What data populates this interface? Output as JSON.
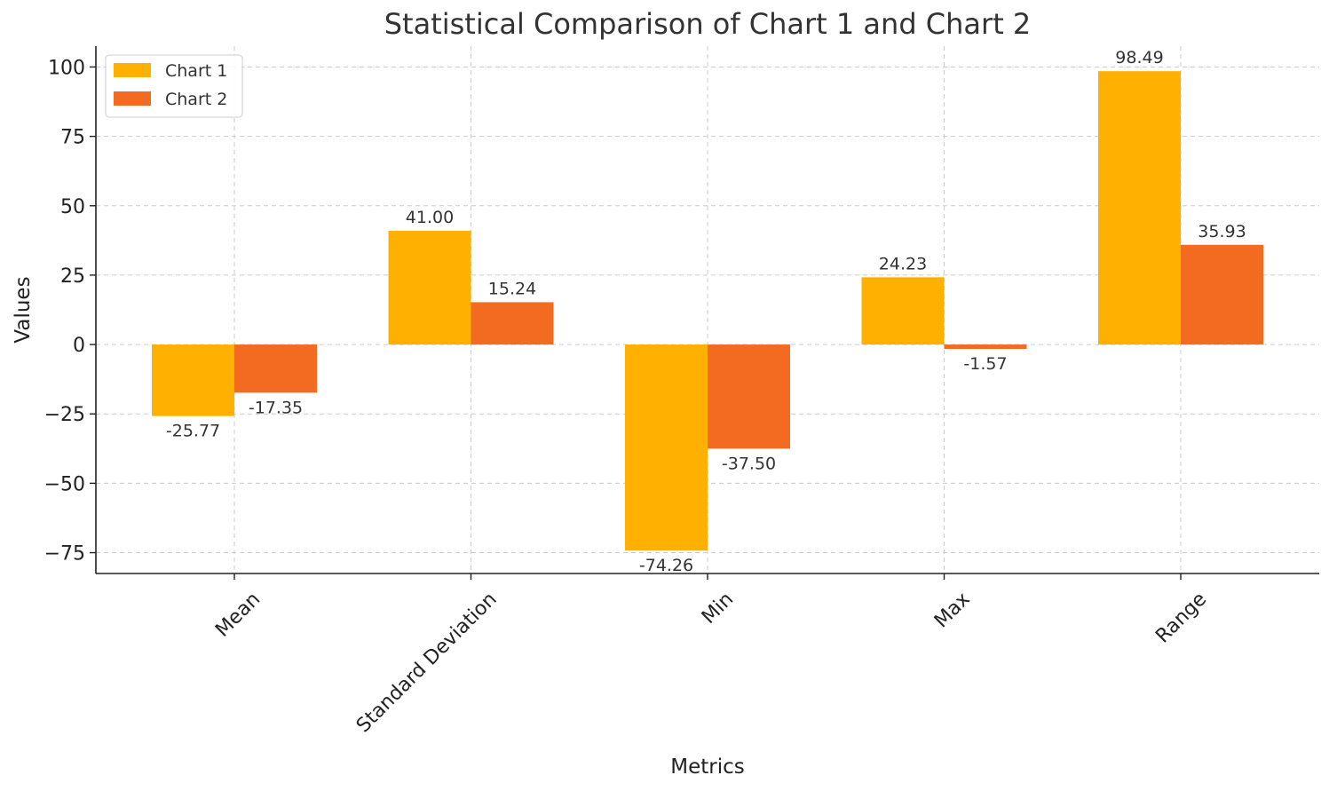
{
  "chart_data": {
    "type": "bar",
    "title": "Statistical Comparison of Chart 1 and Chart 2",
    "xlabel": "Metrics",
    "ylabel": "Values",
    "categories": [
      "Mean",
      "Standard Deviation",
      "Min",
      "Max",
      "Range"
    ],
    "series": [
      {
        "name": "Chart 1",
        "color": "#FFB000",
        "values": [
          -25.77,
          41.0,
          -74.26,
          24.23,
          98.49
        ],
        "labels": [
          "-25.77",
          "41.00",
          "-74.26",
          "24.23",
          "98.49"
        ]
      },
      {
        "name": "Chart 2",
        "color": "#F26B21",
        "values": [
          -17.35,
          15.24,
          -37.5,
          -1.57,
          35.93
        ],
        "labels": [
          "-17.35",
          "15.24",
          "-37.50",
          "-1.57",
          "35.93"
        ]
      }
    ],
    "ylim": [
      -82.5,
      107.5
    ],
    "yticks": [
      100,
      75,
      50,
      25,
      0,
      -25,
      -50,
      -75
    ],
    "ytick_labels": [
      "100",
      "75",
      "50",
      "25",
      "0",
      "−25",
      "−50",
      "−75"
    ],
    "grid": true,
    "legend": "top-left"
  }
}
